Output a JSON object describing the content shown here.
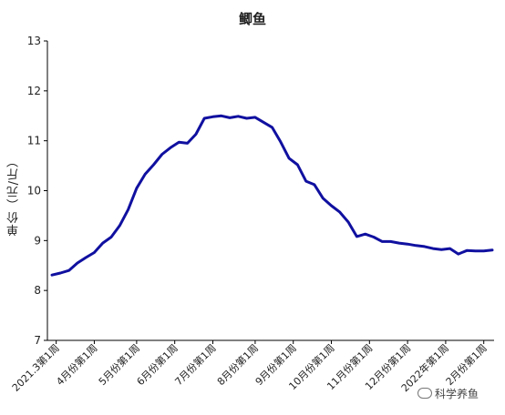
{
  "chart_data": {
    "type": "line",
    "title": "鲫鱼",
    "ylabel": "单价（元/斤）",
    "xlabel": "",
    "ylim": [
      7,
      13
    ],
    "yticks": [
      7,
      8,
      9,
      10,
      11,
      12,
      13
    ],
    "grid": false,
    "legend": "none",
    "line_color": "#1010a0",
    "x_ticks": [
      "2021.3第1周",
      "4月份第1周",
      "5月份第1周",
      "6月份第1周",
      "7月份第1周",
      "8月份第1周",
      "9月份第1周",
      "10月份第1周",
      "11月份第1周",
      "12月份第1周",
      "2022年第1周",
      "2月份第1周"
    ],
    "x_tick_index": [
      0.5,
      5,
      10,
      14.5,
      19,
      24,
      28.5,
      33,
      37.5,
      42,
      46.5,
      51
    ],
    "values": [
      8.31,
      8.35,
      8.4,
      8.55,
      8.66,
      8.76,
      8.95,
      9.07,
      9.3,
      9.62,
      10.05,
      10.33,
      10.52,
      10.73,
      10.86,
      10.97,
      10.95,
      11.13,
      11.45,
      11.48,
      11.5,
      11.46,
      11.49,
      11.45,
      11.47,
      11.37,
      11.27,
      10.98,
      10.65,
      10.52,
      10.19,
      10.12,
      9.85,
      9.7,
      9.57,
      9.37,
      9.08,
      9.13,
      9.07,
      8.98,
      8.98,
      8.95,
      8.93,
      8.9,
      8.88,
      8.84,
      8.82,
      8.84,
      8.73,
      8.8,
      8.79,
      8.79,
      8.81
    ]
  },
  "watermark": "科学养鱼"
}
